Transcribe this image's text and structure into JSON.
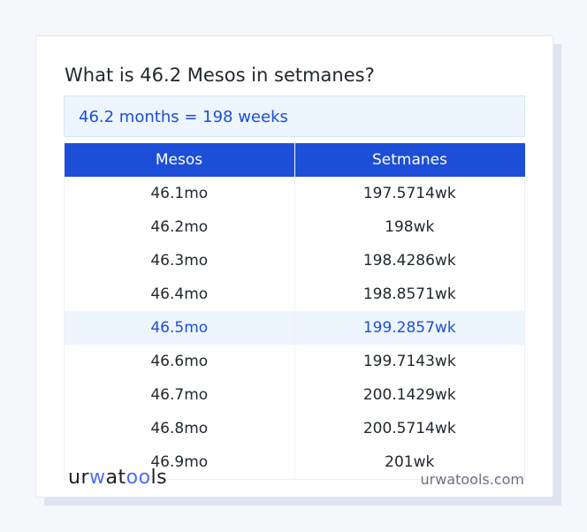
{
  "title": "What is 46.2 Mesos in setmanes?",
  "result": "46.2 months = 198 weeks",
  "table": {
    "headers": [
      "Mesos",
      "Setmanes"
    ],
    "rows": [
      [
        "46.1mo",
        "197.5714wk"
      ],
      [
        "46.2mo",
        "198wk"
      ],
      [
        "46.3mo",
        "198.4286wk"
      ],
      [
        "46.4mo",
        "198.8571wk"
      ],
      [
        "46.5mo",
        "199.2857wk"
      ],
      [
        "46.6mo",
        "199.7143wk"
      ],
      [
        "46.7mo",
        "200.1429wk"
      ],
      [
        "46.8mo",
        "200.5714wk"
      ],
      [
        "46.9mo",
        "201wk"
      ]
    ],
    "highlighted_row": 4
  },
  "footer": {
    "logo": {
      "part1": "ur",
      "part2": "w",
      "part3": "at",
      "part4": "oo",
      "part5": "ls"
    },
    "site": "urwatools.com"
  },
  "colors": {
    "accent": "#1d4ed8",
    "highlight_bg": "#edf5fe"
  }
}
